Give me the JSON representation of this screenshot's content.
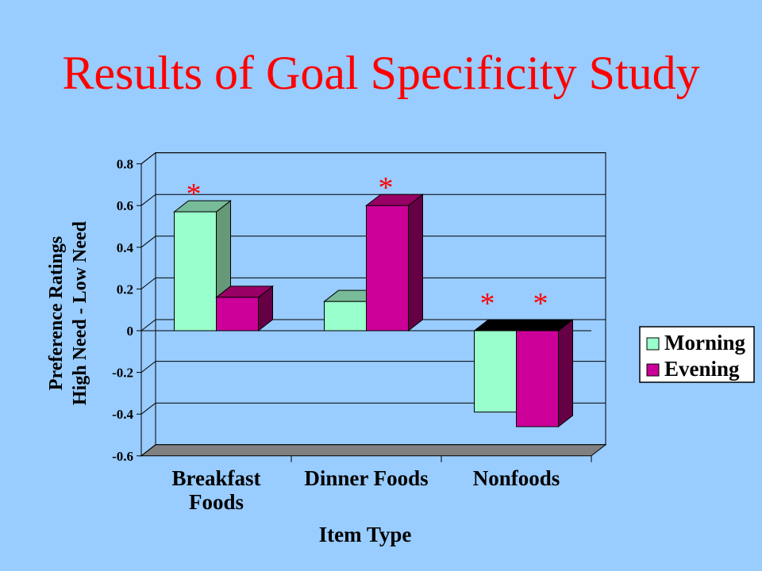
{
  "title": "Results of Goal Specificity Study",
  "chart_data": {
    "type": "bar",
    "categories": [
      "Breakfast Foods",
      "Dinner Foods",
      "Nonfoods"
    ],
    "category_lines": [
      [
        "Breakfast",
        "Foods"
      ],
      [
        "Dinner Foods"
      ],
      [
        "Nonfoods"
      ]
    ],
    "series": [
      {
        "name": "Morning",
        "values": [
          0.57,
          0.14,
          -0.39
        ],
        "color": "#99ffcc",
        "side": "#669977",
        "top": "#77bb99"
      },
      {
        "name": "Evening",
        "values": [
          0.16,
          0.6,
          -0.46
        ],
        "color": "#cc0099",
        "side": "#660044",
        "top": "#990066"
      }
    ],
    "xlabel": "Item Type",
    "ylabel_lines": [
      "Preference Ratings",
      "High Need - Low Need"
    ],
    "ylim": [
      -0.6,
      0.8
    ],
    "yticks": [
      "0.8",
      "0.6",
      "0.4",
      "0.2",
      "0",
      "-0.2",
      "-0.4",
      "-0.6"
    ],
    "yticks_values": [
      0.8,
      0.6,
      0.4,
      0.2,
      0,
      -0.2,
      -0.4,
      -0.6
    ],
    "significance_marks": [
      {
        "category": 0,
        "series": 0,
        "label": "*"
      },
      {
        "category": 1,
        "series": 1,
        "label": "*"
      },
      {
        "category": 2,
        "series": 0,
        "label": "*"
      },
      {
        "category": 2,
        "series": 1,
        "label": "*"
      }
    ],
    "grid": true,
    "legend": "right"
  }
}
